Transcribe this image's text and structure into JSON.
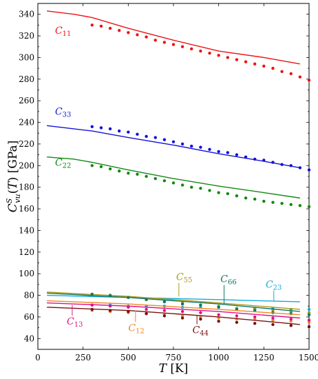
{
  "chart_data": {
    "type": "line",
    "xlabel": "T [K]",
    "ylabel": "C^S_vu(T) [GPa]",
    "xlim": [
      0,
      1500
    ],
    "ylim": [
      30,
      350
    ],
    "xticks": [
      0,
      250,
      500,
      750,
      1000,
      1250,
      1500
    ],
    "yticks": [
      40,
      50,
      60,
      70,
      80,
      90,
      100,
      110,
      120,
      130,
      140,
      150,
      160,
      170,
      180,
      190,
      200,
      210,
      220,
      230,
      240,
      250,
      260,
      270,
      280,
      290,
      300,
      310,
      320,
      330,
      340
    ],
    "grid": false,
    "series": [
      {
        "name": "C11",
        "label_main": "C",
        "label_sub": "11",
        "color": "#ee1111",
        "line": {
          "x": [
            50,
            200,
            300,
            500,
            750,
            1000,
            1250,
            1450
          ],
          "y": [
            343,
            340,
            337,
            327,
            316,
            306,
            300,
            294
          ]
        },
        "points": {
          "x": [
            300,
            350,
            400,
            450,
            500,
            550,
            600,
            650,
            700,
            750,
            800,
            850,
            900,
            950,
            1000,
            1050,
            1100,
            1150,
            1200,
            1250,
            1300,
            1350,
            1400,
            1450,
            1500
          ],
          "y": [
            330,
            329,
            327,
            325,
            323,
            321,
            319,
            316,
            314,
            312,
            310,
            308,
            306,
            304,
            302,
            300,
            298,
            296,
            294,
            292,
            290,
            287,
            285,
            282,
            279
          ]
        }
      },
      {
        "name": "C33",
        "label_main": "C",
        "label_sub": "33",
        "color": "#1111dd",
        "line": {
          "x": [
            50,
            300,
            500,
            750,
            1000,
            1250,
            1450
          ],
          "y": [
            237,
            232,
            226,
            219,
            211,
            204,
            198
          ]
        },
        "points": {
          "x": [
            300,
            350,
            400,
            450,
            500,
            550,
            600,
            650,
            700,
            750,
            800,
            850,
            900,
            950,
            1000,
            1050,
            1100,
            1150,
            1200,
            1250,
            1300,
            1350,
            1400,
            1450,
            1500
          ],
          "y": [
            236,
            235,
            234,
            232,
            231,
            229,
            227,
            226,
            224,
            222,
            220,
            218,
            217,
            215,
            213,
            212,
            210,
            208,
            206,
            205,
            203,
            201,
            200,
            198,
            196
          ]
        }
      },
      {
        "name": "C22",
        "label_main": "C",
        "label_sub": "22",
        "color": "#118811",
        "line": {
          "x": [
            50,
            200,
            300,
            500,
            750,
            1000,
            1250,
            1450
          ],
          "y": [
            208,
            206,
            203,
            196,
            188,
            181,
            175,
            170
          ]
        },
        "points": {
          "x": [
            300,
            350,
            400,
            450,
            500,
            550,
            600,
            650,
            700,
            750,
            800,
            850,
            900,
            950,
            1000,
            1050,
            1100,
            1150,
            1200,
            1250,
            1300,
            1350,
            1400,
            1450,
            1500
          ],
          "y": [
            200,
            199,
            197,
            195,
            193,
            192,
            190,
            188,
            186,
            184,
            182,
            180,
            179,
            177,
            175,
            174,
            172,
            170,
            169,
            167,
            166,
            165,
            164,
            163,
            162
          ]
        }
      },
      {
        "name": "C23",
        "label_main": "C",
        "label_sub": "23",
        "color": "#11aadd",
        "line": {
          "x": [
            50,
            500,
            1000,
            1450
          ],
          "y": [
            80,
            78,
            76,
            74
          ]
        },
        "points": {
          "x": [
            300,
            400,
            500,
            600,
            700,
            800,
            900,
            1000,
            1100,
            1200,
            1300,
            1400,
            1500
          ],
          "y": [
            71,
            71,
            70,
            70,
            70,
            69,
            69,
            69,
            68,
            68,
            68,
            67,
            67
          ]
        }
      },
      {
        "name": "C55",
        "label_main": "C",
        "label_sub": "55",
        "color": "#aa9911",
        "line": {
          "x": [
            50,
            500,
            1000,
            1450
          ],
          "y": [
            83,
            79,
            73,
            67
          ]
        },
        "points": {
          "x": [
            300,
            400,
            500,
            600,
            700,
            800,
            900,
            1000,
            1100,
            1200,
            1300,
            1400,
            1500
          ],
          "y": [
            81,
            80,
            78,
            76,
            74,
            73,
            71,
            70,
            68,
            67,
            66,
            65,
            64
          ]
        }
      },
      {
        "name": "C66",
        "label_main": "C",
        "label_sub": "66",
        "color": "#117766",
        "line": {
          "x": [
            50,
            500,
            1000,
            1450
          ],
          "y": [
            82,
            78,
            72,
            65
          ]
        },
        "points": {
          "x": [
            300,
            400,
            500,
            600,
            700,
            800,
            900,
            1000,
            1100,
            1200,
            1300,
            1400,
            1500
          ],
          "y": [
            81,
            80,
            78,
            76,
            74,
            72,
            71,
            69,
            67,
            66,
            64,
            63,
            62
          ]
        }
      },
      {
        "name": "C12",
        "label_main": "C",
        "label_sub": "12",
        "color": "#ee8822",
        "line": {
          "x": [
            50,
            500,
            1000,
            1450
          ],
          "y": [
            75,
            72,
            67,
            62
          ]
        },
        "points": {
          "x": [
            300,
            400,
            500,
            600,
            700,
            800,
            900,
            1000,
            1100,
            1200,
            1300,
            1400,
            1500
          ],
          "y": [
            66,
            65,
            64,
            63,
            62,
            61,
            60,
            59,
            58,
            58,
            57,
            56,
            55
          ]
        }
      },
      {
        "name": "C13",
        "label_main": "C",
        "label_sub": "13",
        "color": "#dd1188",
        "line": {
          "x": [
            50,
            500,
            1000,
            1450
          ],
          "y": [
            73,
            70,
            65,
            59
          ]
        },
        "points": {
          "x": [
            300,
            400,
            500,
            600,
            700,
            800,
            900,
            1000,
            1100,
            1200,
            1300,
            1400,
            1500
          ],
          "y": [
            71,
            70,
            69,
            67,
            66,
            65,
            64,
            62,
            61,
            60,
            59,
            58,
            57
          ]
        }
      },
      {
        "name": "C44",
        "label_main": "C",
        "label_sub": "44",
        "color": "#771111",
        "line": {
          "x": [
            50,
            500,
            1000,
            1450
          ],
          "y": [
            69,
            66,
            60,
            53
          ]
        },
        "points": {
          "x": [
            300,
            400,
            500,
            600,
            700,
            800,
            900,
            1000,
            1100,
            1200,
            1300,
            1400,
            1500
          ],
          "y": [
            67,
            66,
            65,
            63,
            61,
            59,
            58,
            56,
            55,
            54,
            53,
            52,
            51
          ]
        }
      }
    ],
    "annotations": [
      {
        "series": "C11",
        "text_main": "C",
        "text_sub": "11",
        "tx": 95,
        "ty": 322,
        "leader": false
      },
      {
        "series": "C33",
        "text_main": "C",
        "text_sub": "33",
        "tx": 95,
        "ty": 247,
        "leader": false
      },
      {
        "series": "C22",
        "text_main": "C",
        "text_sub": "22",
        "tx": 95,
        "ty": 200,
        "leader": false
      },
      {
        "series": "C55",
        "text_main": "C",
        "text_sub": "55",
        "tx": 765,
        "ty": 94,
        "leader": true,
        "lx": 780,
        "ly": 79
      },
      {
        "series": "C66",
        "text_main": "C",
        "text_sub": "66",
        "tx": 1010,
        "ty": 92,
        "leader": true,
        "lx": 1030,
        "ly": 72
      },
      {
        "series": "C23",
        "text_main": "C",
        "text_sub": "23",
        "tx": 1260,
        "ty": 87,
        "leader": true,
        "lx": 1305,
        "ly": 75
      },
      {
        "series": "C13",
        "text_main": "C",
        "text_sub": "13",
        "tx": 160,
        "ty": 53,
        "leader": true,
        "lx": 190,
        "ly": 71
      },
      {
        "series": "C12",
        "text_main": "C",
        "text_sub": "12",
        "tx": 500,
        "ty": 47,
        "leader": true,
        "lx": 540,
        "ly": 66
      },
      {
        "series": "C44",
        "text_main": "C",
        "text_sub": "44",
        "tx": 855,
        "ty": 45,
        "leader": true,
        "lx": 880,
        "ly": 61
      }
    ]
  }
}
